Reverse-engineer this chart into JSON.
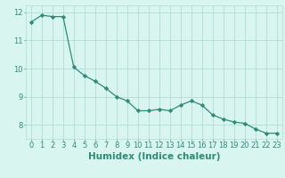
{
  "xlabel": "Humidex (Indice chaleur)",
  "x": [
    0,
    1,
    2,
    3,
    4,
    5,
    6,
    7,
    8,
    9,
    10,
    11,
    12,
    13,
    14,
    15,
    16,
    17,
    18,
    19,
    20,
    21,
    22,
    23
  ],
  "y": [
    11.65,
    11.9,
    11.85,
    11.85,
    10.05,
    9.75,
    9.55,
    9.3,
    9.0,
    8.85,
    8.5,
    8.5,
    8.55,
    8.5,
    8.7,
    8.85,
    8.7,
    8.35,
    8.2,
    8.1,
    8.05,
    7.85,
    7.7,
    7.7
  ],
  "line_color": "#2e8b74",
  "marker": "D",
  "marker_size": 2.2,
  "bg_color": "#d8f5f0",
  "grid_color": "#b0ddd6",
  "ylim": [
    7.5,
    12.25
  ],
  "yticks": [
    8,
    9,
    10,
    11,
    12
  ],
  "xticks": [
    0,
    1,
    2,
    3,
    4,
    5,
    6,
    7,
    8,
    9,
    10,
    11,
    12,
    13,
    14,
    15,
    16,
    17,
    18,
    19,
    20,
    21,
    22,
    23
  ],
  "tick_label_fontsize": 6,
  "xlabel_fontsize": 7.5,
  "axis_color": "#2e8b74",
  "line_width": 0.9
}
